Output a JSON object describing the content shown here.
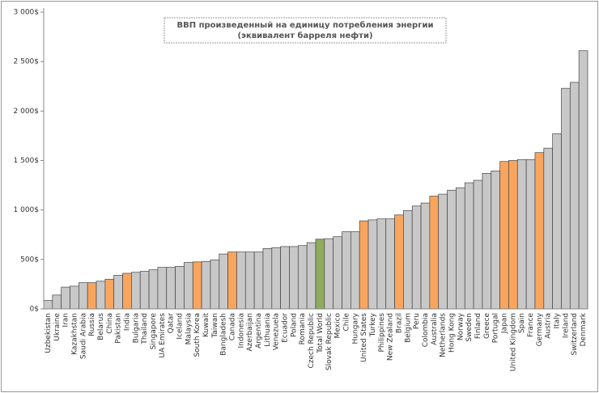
{
  "chart_data": {
    "type": "bar",
    "title": [
      "ВВП произведенный на единицу потребления энергии",
      "(эквивалент барреля нефти)"
    ],
    "categories": [
      "Uzbekistan",
      "Ukraine",
      "Iran",
      "Kazakhstan",
      "Saudi Arabia",
      "Russia",
      "Belarus",
      "China",
      "Pakistan",
      "India",
      "Bulgaria",
      "Thailand",
      "Singapore",
      "UA Emirates",
      "Qatar",
      "Iceland",
      "Malaysia",
      "South Korea",
      "Kuwait",
      "Taiwan",
      "Bangladesh",
      "Canada",
      "Indonesia",
      "Azerbaijan",
      "Argentina",
      "Lithuania",
      "Venezuela",
      "Ecuador",
      "Poland",
      "Romania",
      "Czech Republic",
      "Total World",
      "Slovak Republic",
      "Mexico",
      "Chile",
      "Hungary",
      "United States",
      "Turkey",
      "Philippines",
      "New Zealand",
      "Brazil",
      "Belgium",
      "Peru",
      "Colombia",
      "Australia",
      "Netherlands",
      "Hong Kong",
      "Norway",
      "Sweden",
      "Finland",
      "Greece",
      "Portugal",
      "Japan",
      "United Kingdom",
      "Spain",
      "France",
      "Germany",
      "Austria",
      "Italy",
      "Ireland",
      "Switzerland",
      "Denmark"
    ],
    "values": [
      85,
      140,
      220,
      230,
      265,
      265,
      280,
      300,
      340,
      360,
      370,
      380,
      395,
      420,
      420,
      430,
      470,
      475,
      480,
      495,
      555,
      575,
      575,
      575,
      575,
      610,
      620,
      630,
      630,
      640,
      670,
      705,
      710,
      730,
      780,
      780,
      890,
      900,
      910,
      910,
      950,
      995,
      1040,
      1070,
      1140,
      1160,
      1200,
      1225,
      1275,
      1300,
      1370,
      1395,
      1490,
      1500,
      1510,
      1510,
      1580,
      1625,
      1770,
      2230,
      2290,
      2610
    ],
    "colors": [
      "#c8c8c8",
      "#c8c8c8",
      "#c8c8c8",
      "#c8c8c8",
      "#c8c8c8",
      "#f9a55e",
      "#c8c8c8",
      "#f9a55e",
      "#c8c8c8",
      "#f9a55e",
      "#c8c8c8",
      "#c8c8c8",
      "#c8c8c8",
      "#c8c8c8",
      "#c8c8c8",
      "#c8c8c8",
      "#c8c8c8",
      "#f9a55e",
      "#c8c8c8",
      "#c8c8c8",
      "#c8c8c8",
      "#f9a55e",
      "#c8c8c8",
      "#c8c8c8",
      "#c8c8c8",
      "#c8c8c8",
      "#c8c8c8",
      "#c8c8c8",
      "#c8c8c8",
      "#c8c8c8",
      "#c8c8c8",
      "#8fac5e",
      "#c8c8c8",
      "#c8c8c8",
      "#c8c8c8",
      "#c8c8c8",
      "#f9a55e",
      "#c8c8c8",
      "#c8c8c8",
      "#c8c8c8",
      "#f9a55e",
      "#c8c8c8",
      "#c8c8c8",
      "#c8c8c8",
      "#f9a55e",
      "#c8c8c8",
      "#c8c8c8",
      "#c8c8c8",
      "#c8c8c8",
      "#c8c8c8",
      "#c8c8c8",
      "#c8c8c8",
      "#f9a55e",
      "#f9a55e",
      "#c8c8c8",
      "#c8c8c8",
      "#f9a55e",
      "#c8c8c8",
      "#c8c8c8",
      "#c8c8c8",
      "#c8c8c8",
      "#c8c8c8"
    ],
    "ylim": [
      0,
      3000
    ],
    "yticks": [
      {
        "value": 0,
        "label": "0$"
      },
      {
        "value": 500,
        "label": "500$"
      },
      {
        "value": 1000,
        "label": "1 000$"
      },
      {
        "value": 1500,
        "label": "1 500$"
      },
      {
        "value": 2000,
        "label": "2 000$"
      },
      {
        "value": 2500,
        "label": "2 500$"
      },
      {
        "value": 3000,
        "label": "3 000$"
      }
    ],
    "grid": false
  }
}
